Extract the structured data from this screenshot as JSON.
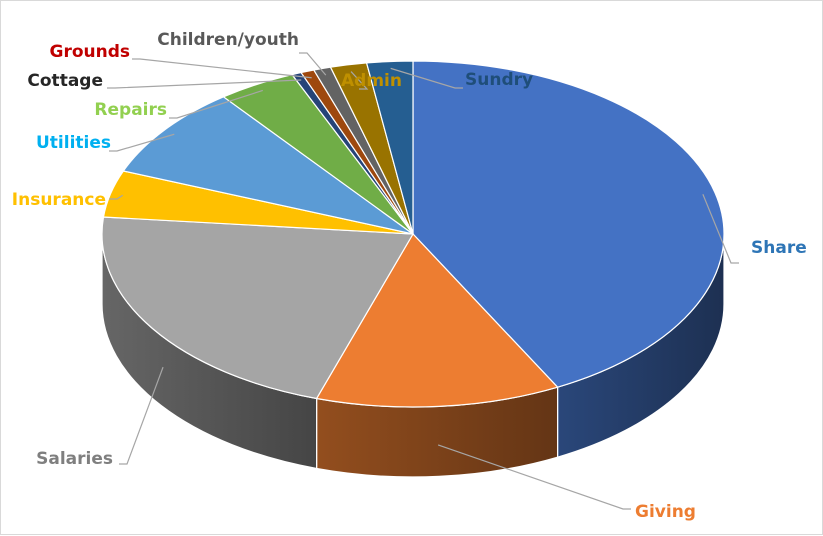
{
  "chart_data": {
    "type": "pie",
    "style": "3d",
    "legend": "none",
    "slices": [
      {
        "name": "Share",
        "value": 42.6,
        "color": "#4472c4"
      },
      {
        "name": "Giving",
        "value": 12.8,
        "color": "#ed7d31"
      },
      {
        "name": "Salaries",
        "value": 21.7,
        "color": "#a5a5a5"
      },
      {
        "name": "Insurance",
        "value": 4.4,
        "color": "#ffc000"
      },
      {
        "name": "Utilities",
        "value": 8.7,
        "color": "#5b9bd5"
      },
      {
        "name": "Repairs",
        "value": 4.1,
        "color": "#70ad47"
      },
      {
        "name": "Cottage",
        "value": 0.5,
        "color": "#264478"
      },
      {
        "name": "Grounds",
        "value": 0.7,
        "color": "#9e480e"
      },
      {
        "name": "Children/youth",
        "value": 0.9,
        "color": "#636363"
      },
      {
        "name": "Admin",
        "value": 1.9,
        "color": "#997300"
      },
      {
        "name": "Sundry",
        "value": 2.4,
        "color": "#255e91"
      }
    ],
    "label_colors": {
      "Share": "#2e75b6",
      "Giving": "#ed7d31",
      "Salaries": "#7f7f7f",
      "Insurance": "#ffc000",
      "Utilities": "#00b0f0",
      "Repairs": "#92d050",
      "Cottage": "#262626",
      "Grounds": "#c00000",
      "Children/youth": "#595959",
      "Admin": "#bf9000",
      "Sundry": "#1f4e79"
    }
  }
}
